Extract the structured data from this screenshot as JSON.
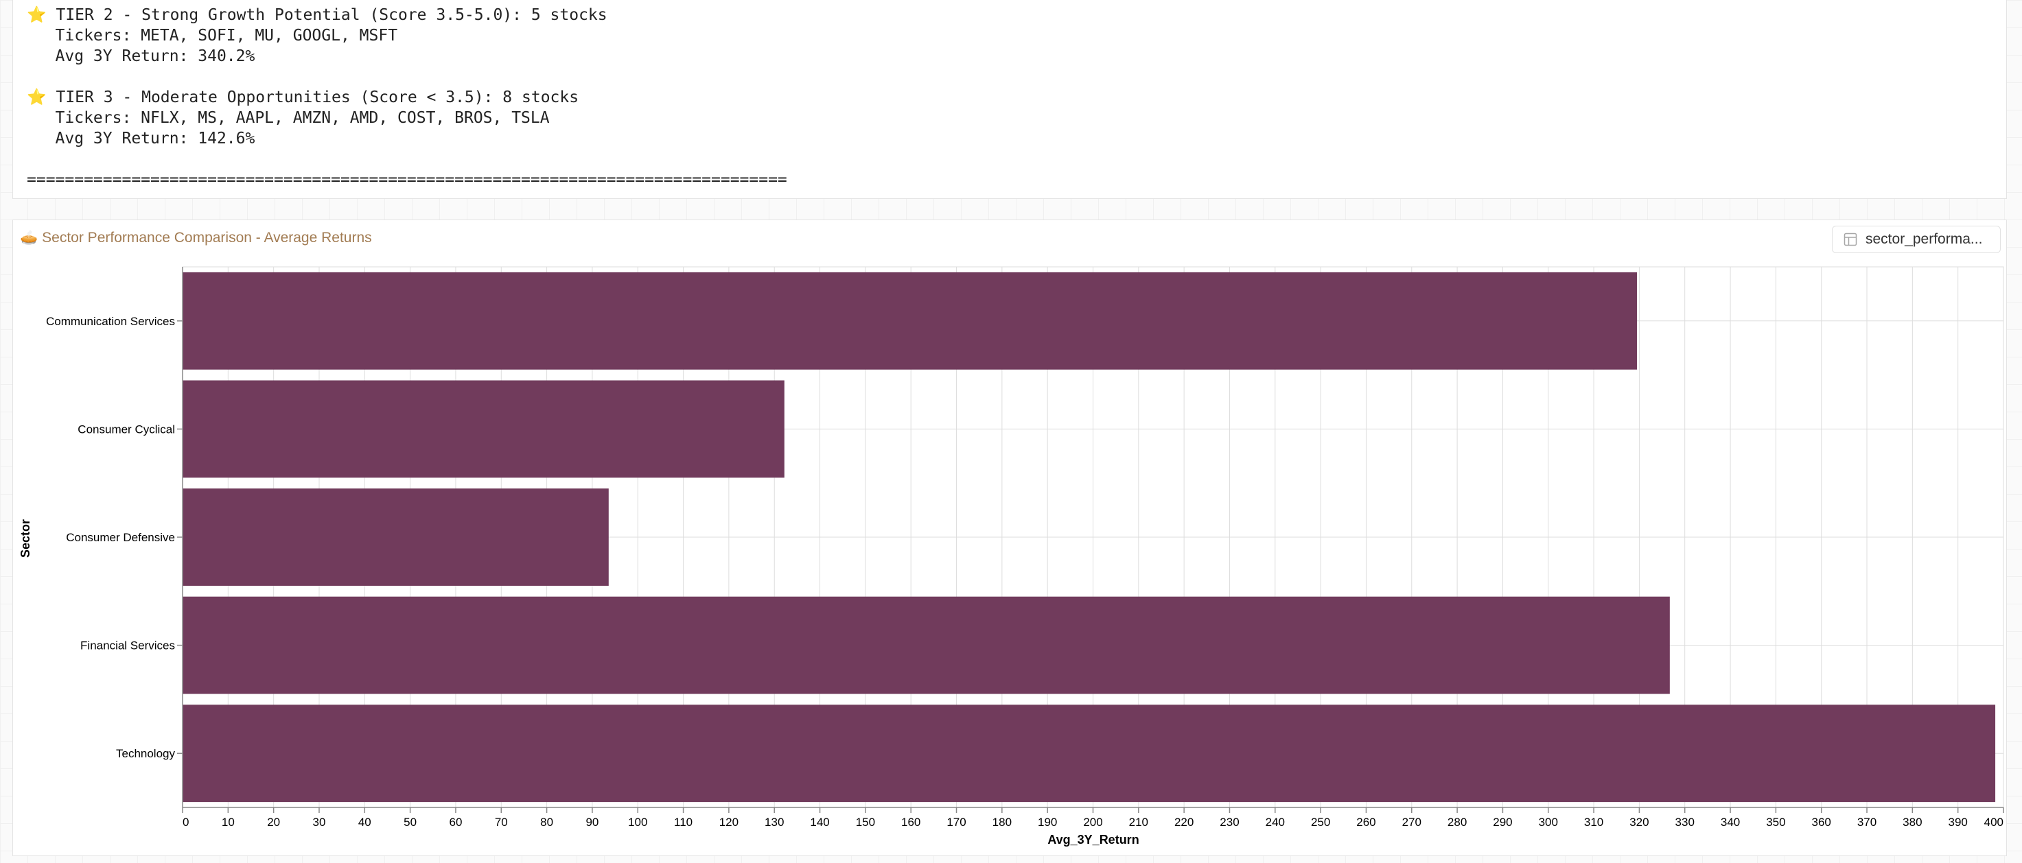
{
  "output": {
    "lines": [
      {
        "star": "⭐",
        "text": " TIER 2 - Strong Growth Potential (Score 3.5-5.0): 5 stocks"
      },
      {
        "star": "",
        "text": "   Tickers: META, SOFI, MU, GOOGL, MSFT"
      },
      {
        "star": "",
        "text": "   Avg 3Y Return: 340.2%"
      },
      {
        "star": "",
        "text": ""
      },
      {
        "star": "⭐",
        "text": " TIER 3 - Moderate Opportunities (Score < 3.5): 8 stocks"
      },
      {
        "star": "",
        "text": "   Tickers: NFLX, MS, AAPL, AMZN, AMD, COST, BROS, TSLA"
      },
      {
        "star": "",
        "text": "   Avg 3Y Return: 142.6%"
      },
      {
        "star": "",
        "text": ""
      },
      {
        "star": "",
        "text": "================================================================================"
      }
    ]
  },
  "chart_panel": {
    "title_icon": "pie-chart-icon",
    "title": "Sector Performance Comparison - Average Returns",
    "dataset_button_icon": "table-icon",
    "dataset_button_label": "sector_performa..."
  },
  "chart_data": {
    "type": "bar",
    "orientation": "horizontal",
    "categories": [
      "Communication Services",
      "Consumer Cyclical",
      "Consumer Defensive",
      "Financial Services",
      "Technology"
    ],
    "values": [
      319.5,
      132.2,
      93.6,
      326.7,
      398.2
    ],
    "xlabel": "Avg_3Y_Return",
    "ylabel": "Sector",
    "xlim": [
      0,
      400
    ],
    "x_tick_step": 10,
    "grid": true,
    "bar_color": "#713b5c"
  }
}
